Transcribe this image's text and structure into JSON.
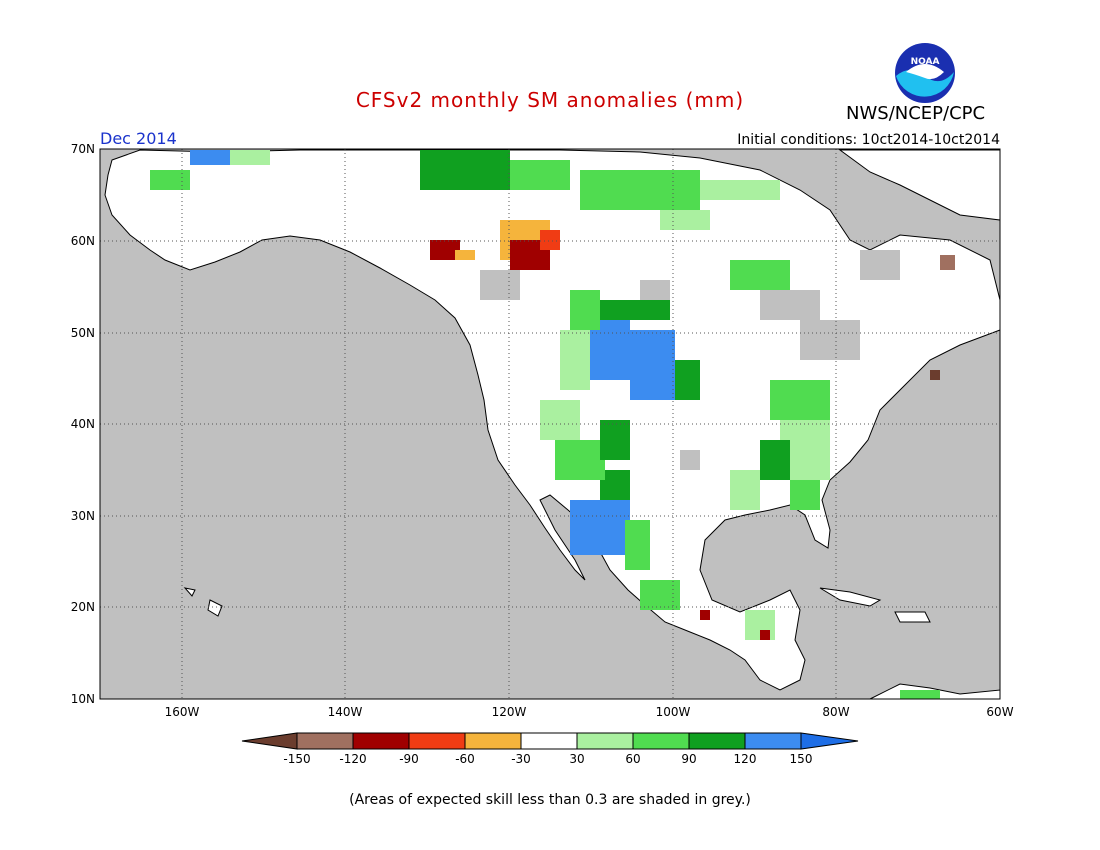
{
  "title": "CFSv2 monthly SM anomalies (mm)",
  "agency": "NWS/NCEP/CPC",
  "logo_text": "NOAA",
  "target_month": "Dec 2014",
  "initial_conditions": "Initial conditions: 10ct2014-10ct2014",
  "footnote": "(Areas of expected skill less than 0.3 are shaded in grey.)",
  "axes": {
    "lat_labels": [
      "70N",
      "60N",
      "50N",
      "40N",
      "30N",
      "20N",
      "10N"
    ],
    "lon_labels": [
      "160W",
      "140W",
      "120W",
      "100W",
      "80W",
      "60W"
    ],
    "lat_range": [
      10,
      70
    ],
    "lon_range": [
      -170,
      -60
    ],
    "grid": "dotted"
  },
  "legend": {
    "tick_labels": [
      "-150",
      "-120",
      "-90",
      "-60",
      "-30",
      "30",
      "60",
      "90",
      "120",
      "150"
    ],
    "colors": [
      "#6b3d2e",
      "#a07060",
      "#a00000",
      "#f03c14",
      "#f5b43c",
      "#ffffff",
      "#aaf0a0",
      "#50dc50",
      "#10a020",
      "#3c8cf0",
      "#1e6ee6"
    ]
  },
  "colors": {
    "ocean_grey": "#c0c0c0",
    "land_white": "#ffffff",
    "title_red": "#cc0000",
    "month_blue": "#1a33cc"
  }
}
